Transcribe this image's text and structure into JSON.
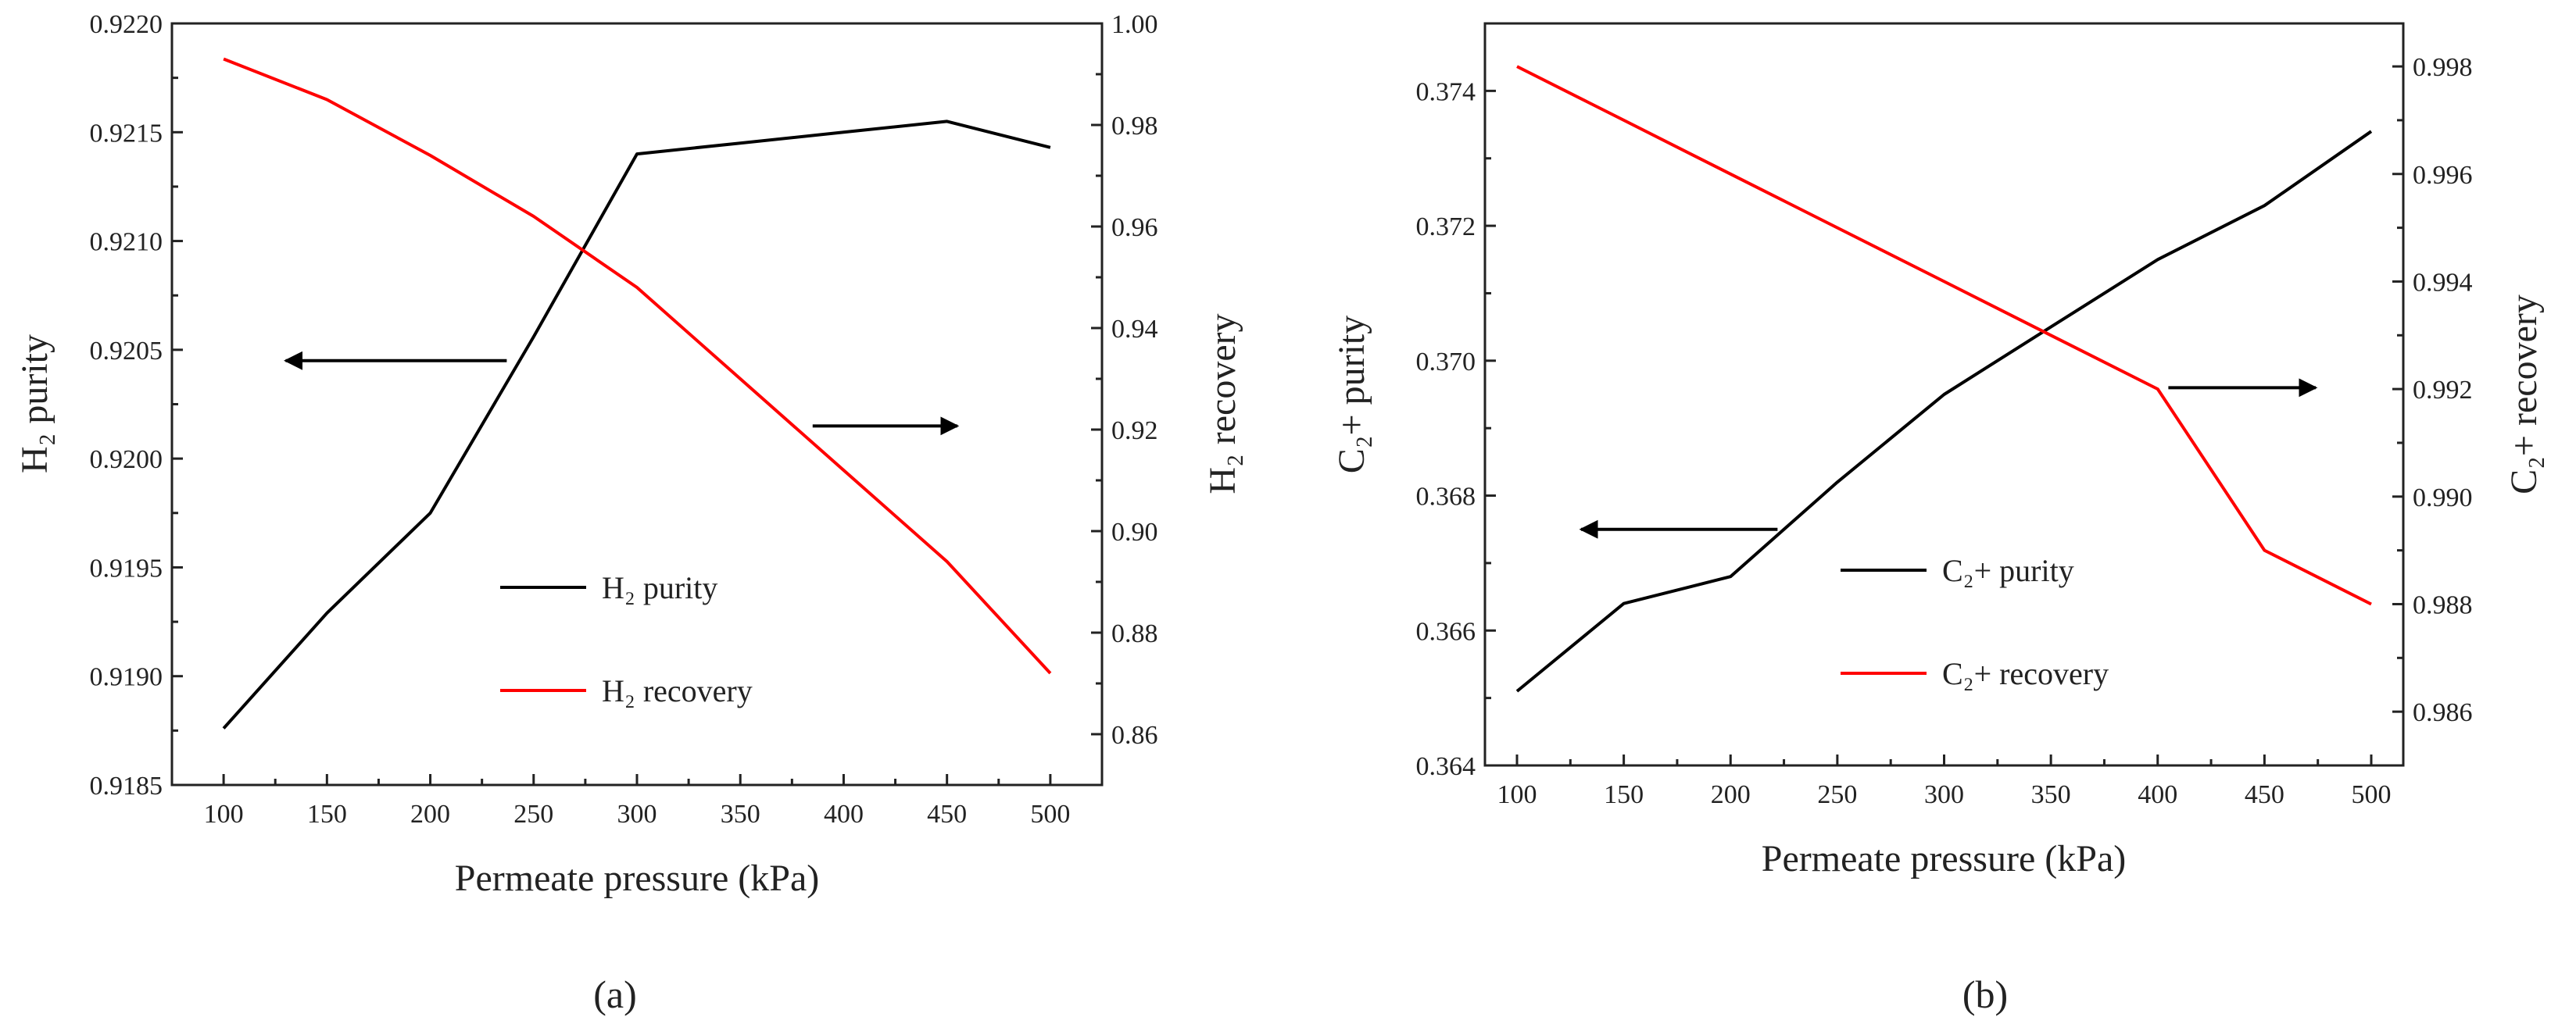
{
  "chart_data": [
    {
      "type": "line",
      "panel_label": "(a)",
      "x": [
        100,
        150,
        200,
        250,
        300,
        350,
        400,
        450,
        500
      ],
      "xlabel": "Permeate pressure (kPa)",
      "xlim": [
        75,
        525
      ],
      "xticks": [
        100,
        150,
        200,
        250,
        300,
        350,
        400,
        450,
        500
      ],
      "ylabel_left": "H₂ purity",
      "ylim_left": [
        0.9185,
        0.922
      ],
      "yticks_left": [
        0.9185,
        0.919,
        0.9195,
        0.92,
        0.9205,
        0.921,
        0.9215,
        0.922
      ],
      "yticklabels_left": [
        "0.9185",
        "0.9190",
        "0.9195",
        "0.9200",
        "0.9205",
        "0.9210",
        "0.9215",
        "0.9220"
      ],
      "ylabel_right": "H₂ recovery",
      "ylim_right": [
        0.85,
        1.0
      ],
      "yticks_right": [
        0.86,
        0.88,
        0.9,
        0.92,
        0.94,
        0.96,
        0.98,
        1.0
      ],
      "yticklabels_right": [
        "0.86",
        "0.88",
        "0.90",
        "0.92",
        "0.94",
        "0.96",
        "0.98",
        "1.00"
      ],
      "series": [
        {
          "name": "H₂ purity",
          "axis": "left",
          "color": "#000000",
          "values": [
            0.91876,
            0.91929,
            0.91975,
            0.92056,
            0.9214,
            0.92145,
            0.9215,
            0.92155,
            0.92143
          ]
        },
        {
          "name": "H₂ recovery",
          "axis": "right",
          "color": "#ff0000",
          "values": [
            0.993,
            0.985,
            0.974,
            0.962,
            0.948,
            0.93,
            0.912,
            0.894,
            0.872
          ]
        }
      ],
      "arrows": [
        {
          "points_to": "left",
          "from_x": 237,
          "to_x": 130,
          "y_left": 0.92045
        },
        {
          "points_to": "right",
          "from_x": 385,
          "to_x": 455,
          "y_left": 0.92015
        }
      ],
      "legend": {
        "placement": "center"
      }
    },
    {
      "type": "line",
      "panel_label": "(b)",
      "x": [
        100,
        150,
        200,
        250,
        300,
        350,
        400,
        450,
        500
      ],
      "xlabel": "Permeate pressure (kPa)",
      "xlim": [
        85,
        515
      ],
      "xticks": [
        100,
        150,
        200,
        250,
        300,
        350,
        400,
        450,
        500
      ],
      "ylabel_left": "C₂+ purity",
      "ylim_left": [
        0.364,
        0.375
      ],
      "yticks_left": [
        0.364,
        0.366,
        0.368,
        0.37,
        0.372,
        0.374
      ],
      "yticklabels_left": [
        "0.364",
        "0.366",
        "0.368",
        "0.370",
        "0.372",
        "0.374"
      ],
      "ylabel_right": "C₂+ recovery",
      "ylim_right": [
        0.985,
        0.9988
      ],
      "yticks_right": [
        0.986,
        0.988,
        0.99,
        0.992,
        0.994,
        0.996,
        0.998
      ],
      "yticklabels_right": [
        "0.986",
        "0.988",
        "0.990",
        "0.992",
        "0.994",
        "0.996",
        "0.998"
      ],
      "series": [
        {
          "name": "C₂+ purity",
          "axis": "left",
          "color": "#000000",
          "values": [
            0.3651,
            0.3664,
            0.3668,
            0.3682,
            0.3695,
            0.3705,
            0.3715,
            0.3723,
            0.3734
          ]
        },
        {
          "name": "C₂+ recovery",
          "axis": "right",
          "color": "#ff0000",
          "values": [
            0.998,
            0.997,
            0.996,
            0.995,
            0.994,
            0.993,
            0.992,
            0.989,
            0.988
          ]
        }
      ],
      "arrows": [
        {
          "points_to": "left",
          "from_x": 222,
          "to_x": 130,
          "y_left": 0.3675
        },
        {
          "points_to": "right",
          "from_x": 405,
          "to_x": 474,
          "y_left": 0.3696
        }
      ],
      "legend": {
        "placement": "center"
      }
    }
  ]
}
